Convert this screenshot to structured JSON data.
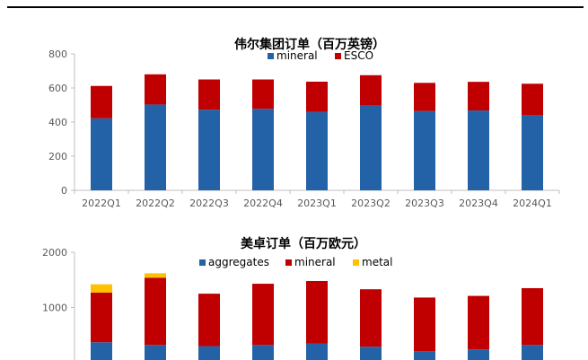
{
  "chart_data": [
    {
      "type": "bar",
      "stacked": true,
      "title": "伟尔集团订单（百万英镑）",
      "categories": [
        "2022Q1",
        "2022Q2",
        "2022Q3",
        "2022Q4",
        "2023Q1",
        "2023Q2",
        "2023Q3",
        "2023Q4",
        "2024Q1"
      ],
      "series": [
        {
          "name": "mineral",
          "color": "#2462A8",
          "values": [
            422,
            503,
            473,
            478,
            460,
            500,
            465,
            468,
            440
          ]
        },
        {
          "name": "ESCO",
          "color": "#C00000",
          "values": [
            190,
            177,
            177,
            172,
            177,
            175,
            165,
            168,
            185
          ]
        }
      ],
      "ylim": [
        0,
        800
      ],
      "yticks": [
        0,
        200,
        400,
        600,
        800
      ],
      "legend": "top-center"
    },
    {
      "type": "bar",
      "stacked": true,
      "title": "美卓订单（百万欧元）",
      "categories": [
        "",
        "",
        "",
        "",
        "",
        "",
        "",
        "",
        ""
      ],
      "series": [
        {
          "name": "aggregates",
          "color": "#2462A8",
          "values": [
            370,
            320,
            300,
            320,
            350,
            290,
            210,
            240,
            320
          ]
        },
        {
          "name": "mineral",
          "color": "#C00000",
          "values": [
            900,
            1220,
            950,
            1110,
            1130,
            1040,
            970,
            970,
            1030
          ]
        },
        {
          "name": "metal",
          "color": "#FFC000",
          "values": [
            150,
            80,
            0,
            0,
            0,
            0,
            0,
            0,
            0
          ]
        }
      ],
      "ylim": [
        0,
        2000
      ],
      "yticks": [
        1000,
        2000
      ],
      "legend": "top-center"
    }
  ]
}
